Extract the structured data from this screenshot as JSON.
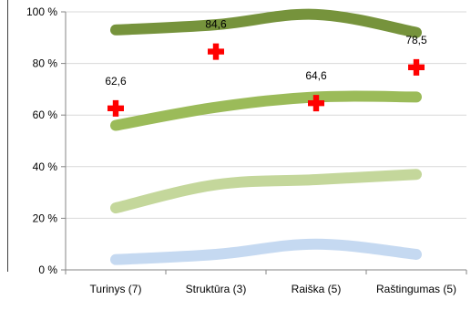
{
  "chart_data": {
    "type": "line",
    "categories": [
      "Turinys (7)",
      "Struktūra (3)",
      "Raiška (5)",
      "Raštingumas (5)"
    ],
    "ylim": [
      0,
      100
    ],
    "yticks": [
      {
        "value": 0,
        "label": "0 %"
      },
      {
        "value": 20,
        "label": "20 %"
      },
      {
        "value": 40,
        "label": "40 %"
      },
      {
        "value": 60,
        "label": "60 %"
      },
      {
        "value": 80,
        "label": "80 %"
      },
      {
        "value": 100,
        "label": "100 %"
      }
    ],
    "grid": true,
    "series": [
      {
        "values": [
          93,
          95,
          99,
          92
        ],
        "color": "#76933c",
        "style": "band"
      },
      {
        "values": [
          56,
          63,
          67,
          67
        ],
        "color": "#9bbb59",
        "style": "band"
      },
      {
        "values": [
          24,
          33,
          35,
          37
        ],
        "color": "#c4d79b",
        "style": "band"
      },
      {
        "values": [
          4,
          6,
          10,
          6
        ],
        "color": "#c5d9f1",
        "style": "band"
      },
      {
        "values": [
          62.6,
          84.6,
          64.6,
          78.5
        ],
        "color": "#ff0000",
        "style": "cross-marker",
        "labels": [
          "62,6",
          "84,6",
          "64,6",
          "78,5"
        ]
      }
    ]
  }
}
